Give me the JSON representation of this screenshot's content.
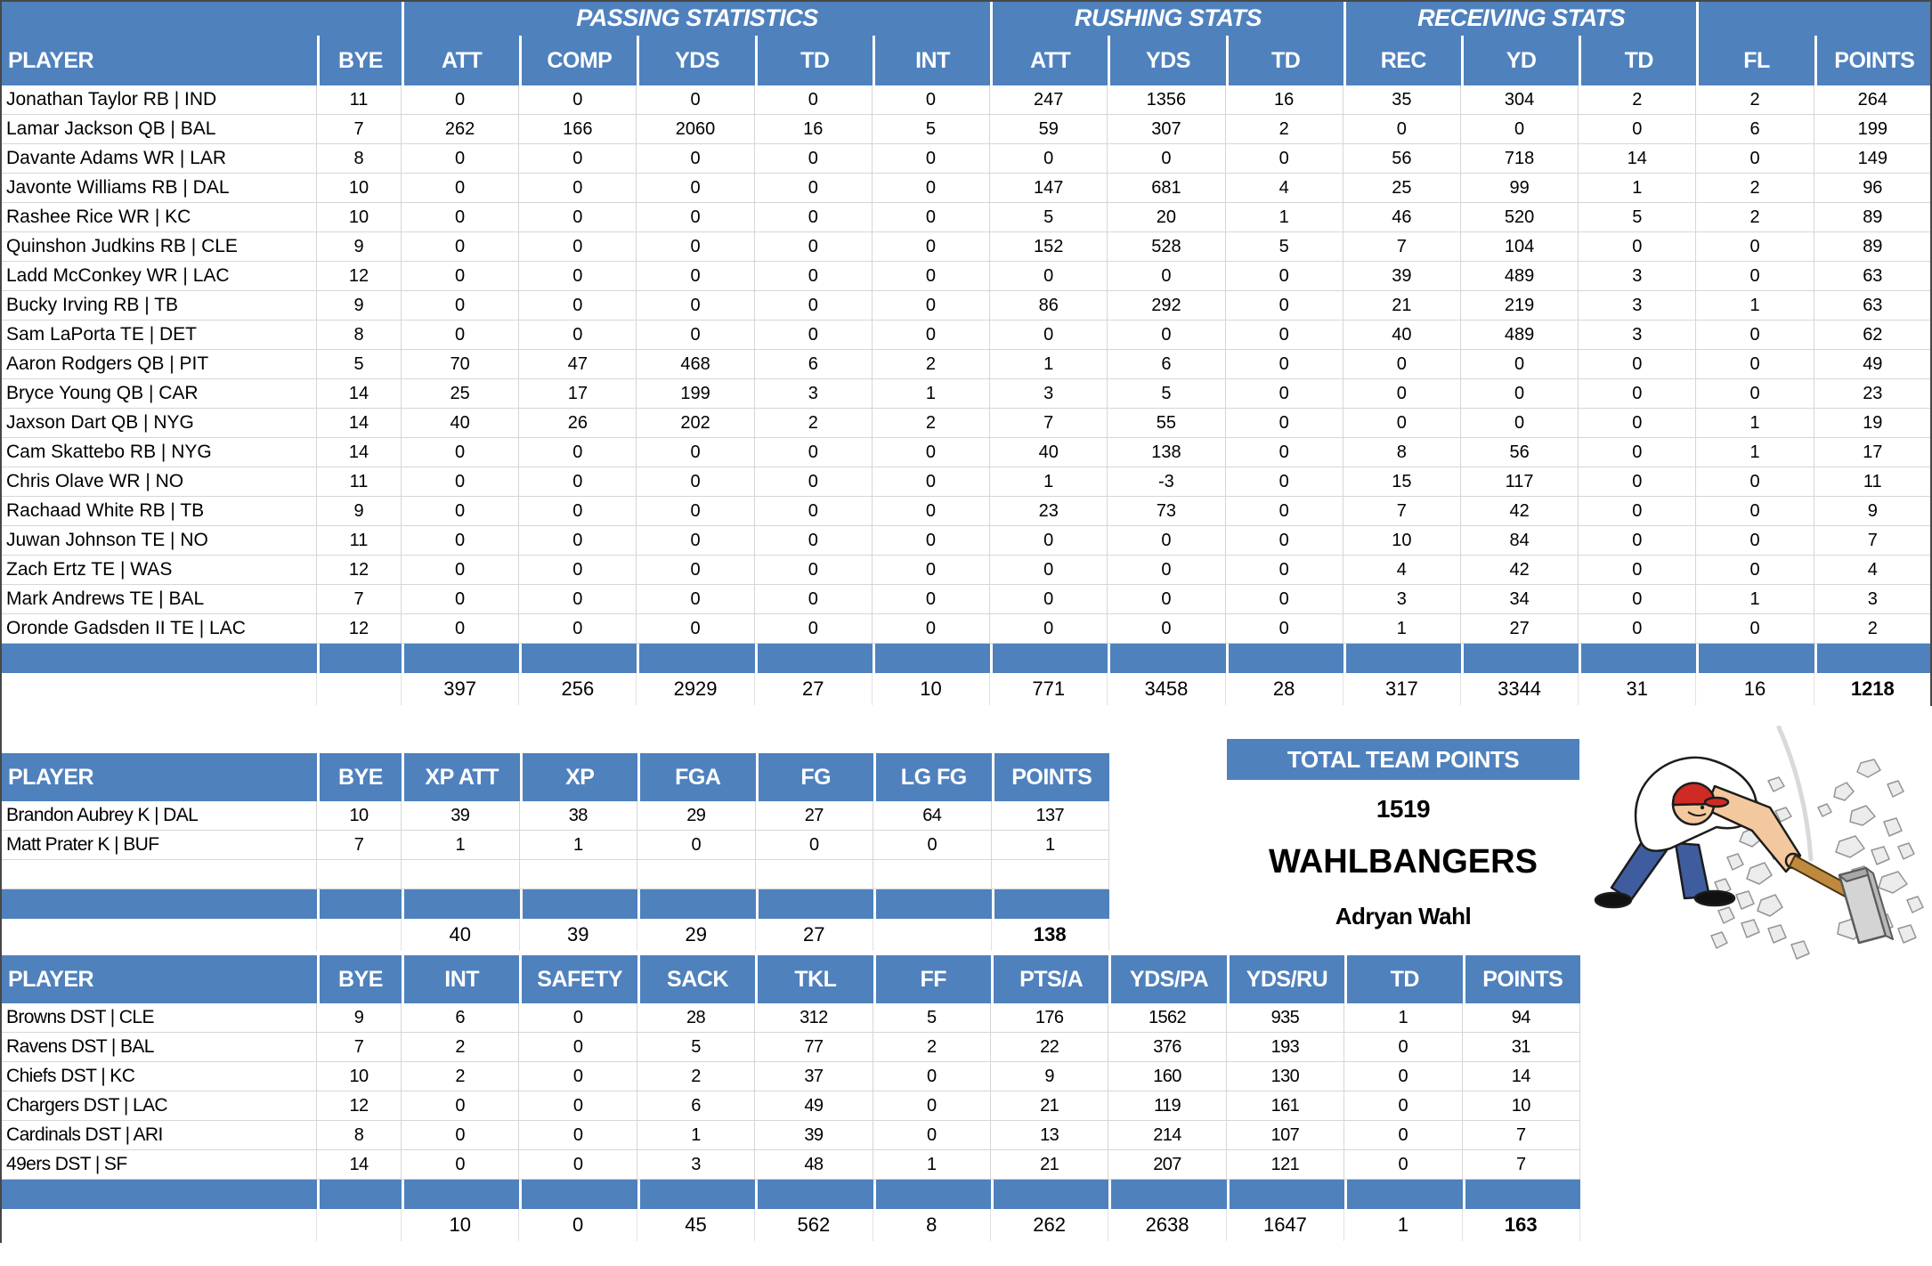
{
  "colors": {
    "accent_blue": "#4F81BD",
    "gridline": "#D6D6D6",
    "header_text": "#FFFFFF",
    "body_text": "#000000"
  },
  "offense_table": {
    "group_row": [
      {
        "label": "",
        "span": 2
      },
      {
        "label": "PASSING STATISTICS",
        "span": 5
      },
      {
        "label": "RUSHING STATS",
        "span": 3
      },
      {
        "label": "RECEIVING STATS",
        "span": 3
      },
      {
        "label": "",
        "span": 2
      }
    ],
    "headers": [
      "PLAYER",
      "BYE",
      "ATT",
      "COMP",
      "YDS",
      "TD",
      "INT",
      "ATT",
      "YDS",
      "TD",
      "REC",
      "YD",
      "TD",
      "FL",
      "POINTS"
    ],
    "rows": [
      [
        "Jonathan Taylor RB | IND",
        11,
        0,
        0,
        0,
        0,
        0,
        247,
        1356,
        16,
        35,
        304,
        2,
        2,
        264
      ],
      [
        "Lamar Jackson QB | BAL",
        7,
        262,
        166,
        2060,
        16,
        5,
        59,
        307,
        2,
        0,
        0,
        0,
        6,
        199
      ],
      [
        "Davante Adams WR | LAR",
        8,
        0,
        0,
        0,
        0,
        0,
        0,
        0,
        0,
        56,
        718,
        14,
        0,
        149
      ],
      [
        "Javonte Williams RB | DAL",
        10,
        0,
        0,
        0,
        0,
        0,
        147,
        681,
        4,
        25,
        99,
        1,
        2,
        96
      ],
      [
        "Rashee Rice WR | KC",
        10,
        0,
        0,
        0,
        0,
        0,
        5,
        20,
        1,
        46,
        520,
        5,
        2,
        89
      ],
      [
        "Quinshon Judkins RB | CLE",
        9,
        0,
        0,
        0,
        0,
        0,
        152,
        528,
        5,
        7,
        104,
        0,
        0,
        89
      ],
      [
        "Ladd McConkey WR | LAC",
        12,
        0,
        0,
        0,
        0,
        0,
        0,
        0,
        0,
        39,
        489,
        3,
        0,
        63
      ],
      [
        "Bucky Irving RB | TB",
        9,
        0,
        0,
        0,
        0,
        0,
        86,
        292,
        0,
        21,
        219,
        3,
        1,
        63
      ],
      [
        "Sam LaPorta TE | DET",
        8,
        0,
        0,
        0,
        0,
        0,
        0,
        0,
        0,
        40,
        489,
        3,
        0,
        62
      ],
      [
        "Aaron Rodgers QB | PIT",
        5,
        70,
        47,
        468,
        6,
        2,
        1,
        6,
        0,
        0,
        0,
        0,
        0,
        49
      ],
      [
        "Bryce Young QB | CAR",
        14,
        25,
        17,
        199,
        3,
        1,
        3,
        5,
        0,
        0,
        0,
        0,
        0,
        23
      ],
      [
        "Jaxson Dart QB | NYG",
        14,
        40,
        26,
        202,
        2,
        2,
        7,
        55,
        0,
        0,
        0,
        0,
        1,
        19
      ],
      [
        "Cam Skattebo RB | NYG",
        14,
        0,
        0,
        0,
        0,
        0,
        40,
        138,
        0,
        8,
        56,
        0,
        1,
        17
      ],
      [
        "Chris Olave WR | NO",
        11,
        0,
        0,
        0,
        0,
        0,
        1,
        -3,
        0,
        15,
        117,
        0,
        0,
        11
      ],
      [
        "Rachaad White RB | TB",
        9,
        0,
        0,
        0,
        0,
        0,
        23,
        73,
        0,
        7,
        42,
        0,
        0,
        9
      ],
      [
        "Juwan Johnson TE | NO",
        11,
        0,
        0,
        0,
        0,
        0,
        0,
        0,
        0,
        10,
        84,
        0,
        0,
        7
      ],
      [
        "Zach Ertz TE | WAS",
        12,
        0,
        0,
        0,
        0,
        0,
        0,
        0,
        0,
        4,
        42,
        0,
        0,
        4
      ],
      [
        "Mark Andrews TE | BAL",
        7,
        0,
        0,
        0,
        0,
        0,
        0,
        0,
        0,
        3,
        34,
        0,
        1,
        3
      ],
      [
        "Oronde Gadsden II TE | LAC",
        12,
        0,
        0,
        0,
        0,
        0,
        0,
        0,
        0,
        1,
        27,
        0,
        0,
        2
      ]
    ],
    "blank_rows": 0,
    "totals": [
      "",
      "",
      397,
      256,
      2929,
      27,
      10,
      771,
      3458,
      28,
      317,
      3344,
      31,
      16,
      1218
    ]
  },
  "kicker_table": {
    "headers": [
      "PLAYER",
      "BYE",
      "XP ATT",
      "XP",
      "FGA",
      "FG",
      "LG FG",
      "POINTS"
    ],
    "rows": [
      [
        "Brandon Aubrey K | DAL",
        10,
        39,
        38,
        29,
        27,
        64,
        137
      ],
      [
        "Matt Prater K | BUF",
        7,
        1,
        1,
        0,
        0,
        0,
        1
      ]
    ],
    "blank_rows": 1,
    "totals": [
      "",
      "",
      40,
      39,
      29,
      27,
      "",
      138
    ]
  },
  "dst_table": {
    "headers": [
      "PLAYER",
      "BYE",
      "INT",
      "SAFETY",
      "SACK",
      "TKL",
      "FF",
      "PTS/A",
      "YDS/PA",
      "YDS/RU",
      "TD",
      "POINTS"
    ],
    "rows": [
      [
        "Browns DST | CLE",
        9,
        6,
        0,
        28,
        312,
        5,
        176,
        1562,
        935,
        1,
        94
      ],
      [
        "Ravens DST | BAL",
        7,
        2,
        0,
        5,
        77,
        2,
        22,
        376,
        193,
        0,
        31
      ],
      [
        "Chiefs DST | KC",
        10,
        2,
        0,
        2,
        37,
        0,
        9,
        160,
        130,
        0,
        14
      ],
      [
        "Chargers DST | LAC",
        12,
        0,
        0,
        6,
        49,
        0,
        21,
        119,
        161,
        0,
        10
      ],
      [
        "Cardinals DST | ARI",
        8,
        0,
        0,
        1,
        39,
        0,
        13,
        214,
        107,
        0,
        7
      ],
      [
        "49ers DST | SF",
        14,
        0,
        0,
        3,
        48,
        1,
        21,
        207,
        121,
        0,
        7
      ]
    ],
    "blank_rows": 0,
    "totals": [
      "",
      "",
      10,
      0,
      45,
      562,
      8,
      262,
      2638,
      1647,
      1,
      163
    ]
  },
  "team_summary": {
    "header": "TOTAL TEAM POINTS",
    "total_points": "1519",
    "team_name": "WAHLBANGERS",
    "owner": "Adryan Wahl"
  },
  "illustration": {
    "name": "man-smashing-rocks-with-sledgehammer"
  }
}
